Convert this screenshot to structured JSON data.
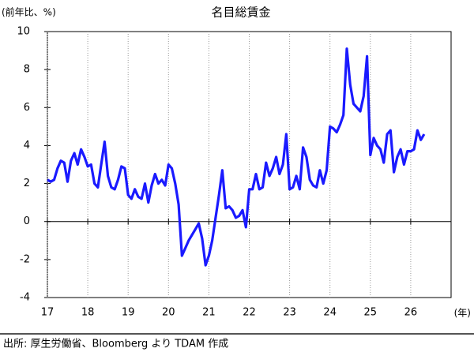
{
  "chart_data": {
    "type": "line",
    "title": "名目総賃金",
    "ylabel": "(前年比、%)",
    "xlabel": "(年)",
    "color": "#1a1aff",
    "x": [
      17,
      17.083,
      17.167,
      17.25,
      17.333,
      17.417,
      17.5,
      17.583,
      17.667,
      17.75,
      17.833,
      17.917,
      18,
      18.083,
      18.167,
      18.25,
      18.333,
      18.417,
      18.5,
      18.583,
      18.667,
      18.75,
      18.833,
      18.917,
      19,
      19.083,
      19.167,
      19.25,
      19.333,
      19.417,
      19.5,
      19.583,
      19.667,
      19.75,
      19.833,
      19.917,
      20,
      20.083,
      20.167,
      20.25,
      20.333,
      20.417,
      20.5,
      20.583,
      20.667,
      20.75,
      20.833,
      20.917,
      21,
      21.083,
      21.167,
      21.25,
      21.333,
      21.417,
      21.5,
      21.583,
      21.667,
      21.75,
      21.833,
      21.917,
      22,
      22.083,
      22.167,
      22.25,
      22.333,
      22.417,
      22.5,
      22.583,
      22.667,
      22.75,
      22.833,
      22.917,
      23,
      23.083,
      23.167,
      23.25,
      23.333,
      23.417,
      23.5,
      23.583,
      23.667,
      23.75,
      23.833,
      23.917,
      24,
      24.083,
      24.167,
      24.25,
      24.333,
      24.417,
      24.5,
      24.583,
      24.667,
      24.75,
      24.833,
      24.917,
      25,
      25.083,
      25.167,
      25.25,
      25.333,
      25.417,
      25.5,
      25.583,
      25.667,
      25.75,
      25.833,
      25.917,
      26,
      26.083,
      26.167,
      26.25,
      26.333
    ],
    "values": [
      2.2,
      2.1,
      2.2,
      2.8,
      3.2,
      3.1,
      2.1,
      3.2,
      3.6,
      3.0,
      3.8,
      3.4,
      2.9,
      3.0,
      2.0,
      1.8,
      3.0,
      4.2,
      2.4,
      1.8,
      1.7,
      2.2,
      2.9,
      2.8,
      1.4,
      1.2,
      1.7,
      1.3,
      1.2,
      2.0,
      1.0,
      1.9,
      2.5,
      2.0,
      2.2,
      1.9,
      3.0,
      2.8,
      2.0,
      0.9,
      -1.8,
      -1.4,
      -1.0,
      -0.7,
      -0.4,
      -0.1,
      -0.9,
      -2.3,
      -1.8,
      -1.0,
      0.2,
      1.4,
      2.7,
      0.7,
      0.8,
      0.6,
      0.2,
      0.3,
      0.6,
      -0.3,
      1.7,
      1.7,
      2.5,
      1.7,
      1.8,
      3.1,
      2.4,
      2.8,
      3.4,
      2.5,
      3.0,
      4.6,
      1.7,
      1.8,
      2.4,
      1.7,
      3.9,
      3.4,
      2.2,
      1.9,
      1.8,
      2.7,
      2.0,
      2.7,
      5.0,
      4.9,
      4.7,
      5.1,
      5.6,
      9.1,
      7.2,
      6.2,
      6.0,
      5.8,
      6.6,
      8.7,
      3.5,
      4.4,
      4.0,
      3.8,
      3.1,
      4.6,
      4.8,
      2.6,
      3.4,
      3.8,
      3.0,
      3.7,
      3.7,
      3.8,
      4.8,
      4.3,
      4.6
    ],
    "xlim": [
      17,
      27
    ],
    "xticks": [
      17,
      18,
      19,
      20,
      21,
      22,
      23,
      24,
      25,
      26
    ],
    "ylim": [
      -4,
      10
    ],
    "yticks": [
      -4,
      -2,
      0,
      2,
      4,
      6,
      8,
      10
    ],
    "grid": true
  },
  "source": "出所: 厚生労働省、Bloomberg より TDAM 作成"
}
